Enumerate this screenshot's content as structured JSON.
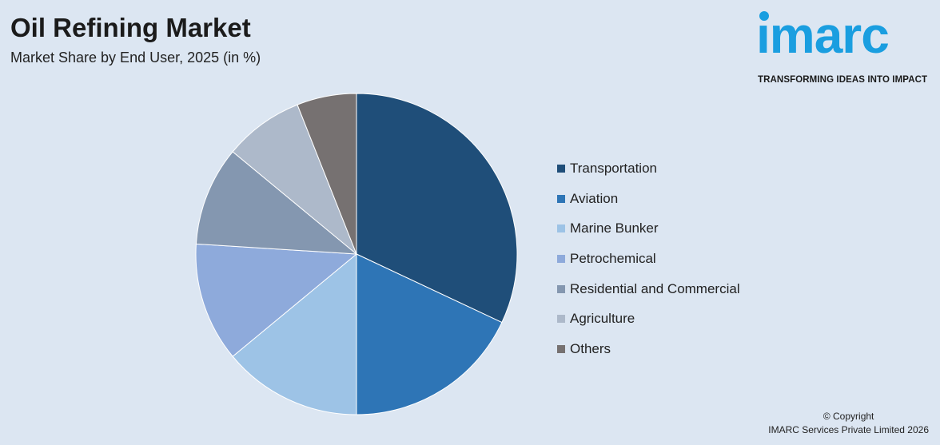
{
  "header": {
    "title": "Oil Refining Market",
    "subtitle": "Market Share by End User, 2025 (in %)"
  },
  "logo": {
    "word": "ımarc",
    "tagline": "TRANSFORMING IDEAS INTO IMPACT",
    "color": "#1a9ee0"
  },
  "chart_data": {
    "type": "pie",
    "title": "",
    "legend_position": "right",
    "start_angle_deg": 0,
    "direction": "clockwise",
    "slices": [
      {
        "label": "Transportation",
        "value": 32,
        "color": "#1f4e79"
      },
      {
        "label": "Aviation",
        "value": 18,
        "color": "#2e75b6"
      },
      {
        "label": "Marine Bunker",
        "value": 14,
        "color": "#9dc3e6"
      },
      {
        "label": "Petrochemical",
        "value": 12,
        "color": "#8eaadb"
      },
      {
        "label": "Residential and Commercial",
        "value": 10,
        "color": "#8497b0"
      },
      {
        "label": "Agriculture",
        "value": 8,
        "color": "#adb9ca"
      },
      {
        "label": "Others",
        "value": 6,
        "color": "#767171"
      }
    ]
  },
  "footer": {
    "copyright_line1": "© Copyright",
    "copyright_line2": "IMARC Services Private Limited 2026"
  }
}
